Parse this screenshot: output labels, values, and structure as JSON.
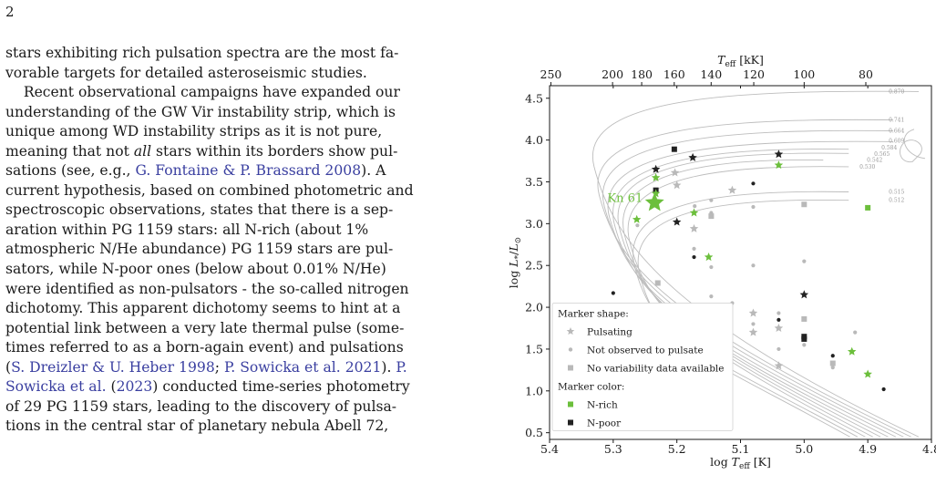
{
  "page_number": "2",
  "lines": [
    [
      {
        "t": "stars exhibiting rich pulsation spectra are the most fa-"
      }
    ],
    [
      {
        "t": "vorable targets for detailed asteroseismic studies."
      }
    ],
    [
      {
        "t": "    Recent observational campaigns have expanded our"
      }
    ],
    [
      {
        "t": "understanding of the GW Vir instability strip, which is"
      }
    ],
    [
      {
        "t": "unique among WD instability strips as it is not pure,"
      }
    ],
    [
      {
        "t": "meaning that not "
      },
      {
        "t": "all",
        "s": "em"
      },
      {
        "t": " stars within its borders show pul-"
      }
    ],
    [
      {
        "t": "sations (see, e.g., "
      },
      {
        "t": "G. Fontaine & P. Brassard 2008",
        "s": "cite"
      },
      {
        "t": "). A"
      }
    ],
    [
      {
        "t": "current hypothesis, based on combined photometric and"
      }
    ],
    [
      {
        "t": "spectroscopic observations, states that there is a sep-"
      }
    ],
    [
      {
        "t": "aration within PG 1159 stars: all N-rich (about 1%"
      }
    ],
    [
      {
        "t": "atmospheric N/He abundance) PG 1159 stars are pul-"
      }
    ],
    [
      {
        "t": "sators, while N-poor ones (below about 0.01% N/He)"
      }
    ],
    [
      {
        "t": "were identified as non-pulsators - the so-called nitrogen"
      }
    ],
    [
      {
        "t": "dichotomy. This apparent dichotomy seems to hint at a"
      }
    ],
    [
      {
        "t": "potential link between a very late thermal pulse (some-"
      }
    ],
    [
      {
        "t": "times referred to as a born-again event) and pulsations"
      }
    ],
    [
      {
        "t": "("
      },
      {
        "t": "S. Dreizler & U. Heber 1998",
        "s": "cite"
      },
      {
        "t": "; "
      },
      {
        "t": "P. Sowicka et al. 2021",
        "s": "cite"
      },
      {
        "t": "). "
      },
      {
        "t": "P.",
        "s": "cite"
      }
    ],
    [
      {
        "t": "Sowicka et al.",
        "s": "cite"
      },
      {
        "t": " ("
      },
      {
        "t": "2023",
        "s": "cite"
      },
      {
        "t": ") conducted time-series photometry"
      }
    ],
    [
      {
        "t": "of 29 PG 1159 stars, leading to the discovery of pulsa-"
      }
    ],
    [
      {
        "t": "tions in the central star of planetary nebula Abell 72,"
      }
    ]
  ],
  "chart_data": {
    "type": "scatter",
    "xlabel": "log T_eff [K]",
    "ylabel": "log L*/L⊙",
    "top_xlabel": "T_eff [kK]",
    "xlim": [
      5.4,
      4.8
    ],
    "x_reversed": true,
    "ylim": [
      0.42,
      4.65
    ],
    "xticks": [
      "5.4",
      "5.3",
      "5.2",
      "5.1",
      "5.0",
      "4.9",
      "4.8"
    ],
    "yticks": [
      "0.5",
      "1.0",
      "1.5",
      "2.0",
      "2.5",
      "3.0",
      "3.5",
      "4.0",
      "4.5"
    ],
    "top_ticks_kK": [
      250,
      200,
      180,
      160,
      140,
      120,
      100,
      80
    ],
    "track_labels": [
      "0.870",
      "0.741",
      "0.664",
      "0.609",
      "0.584",
      "0.565",
      "0.542",
      "0.530",
      "0.515",
      "0.512"
    ],
    "colors": {
      "n_rich": "#6cbf3c",
      "n_poor": "#222222",
      "unknown": "#b9b9b9",
      "track": "#bdbdbd"
    },
    "annotation": {
      "label": "Kn 61",
      "x": 5.235,
      "y": 3.25
    },
    "legend": {
      "placement": "lower-left",
      "shape_title": "Marker shape:",
      "shape_items": [
        {
          "label": "Pulsating",
          "marker": "star"
        },
        {
          "label": "Not observed to pulsate",
          "marker": "dot"
        },
        {
          "label": "No variability data available",
          "marker": "square"
        }
      ],
      "color_title": "Marker color:",
      "color_items": [
        {
          "label": "N-rich",
          "color": "#6cbf3c"
        },
        {
          "label": "N-poor",
          "color": "#222222"
        }
      ]
    },
    "points": [
      {
        "x": 5.204,
        "y": 3.89,
        "m": "sq",
        "c": "k"
      },
      {
        "x": 5.175,
        "y": 3.79,
        "m": "st",
        "c": "k"
      },
      {
        "x": 5.04,
        "y": 3.83,
        "m": "st",
        "c": "k"
      },
      {
        "x": 5.04,
        "y": 3.7,
        "m": "st",
        "c": "g"
      },
      {
        "x": 5.233,
        "y": 3.65,
        "m": "st",
        "c": "k"
      },
      {
        "x": 5.233,
        "y": 3.55,
        "m": "st",
        "c": "g"
      },
      {
        "x": 5.203,
        "y": 3.61,
        "m": "st",
        "c": "u"
      },
      {
        "x": 5.2,
        "y": 3.46,
        "m": "st",
        "c": "u"
      },
      {
        "x": 5.233,
        "y": 3.4,
        "m": "sq",
        "c": "k"
      },
      {
        "x": 5.233,
        "y": 3.36,
        "m": "st",
        "c": "g"
      },
      {
        "x": 5.113,
        "y": 3.4,
        "m": "st",
        "c": "u"
      },
      {
        "x": 5.08,
        "y": 3.48,
        "m": "dot",
        "c": "k"
      },
      {
        "x": 5.146,
        "y": 3.28,
        "m": "dot",
        "c": "u"
      },
      {
        "x": 5.08,
        "y": 3.2,
        "m": "dot",
        "c": "u"
      },
      {
        "x": 5.172,
        "y": 3.21,
        "m": "dot",
        "c": "u"
      },
      {
        "x": 5.173,
        "y": 3.13,
        "m": "st",
        "c": "g"
      },
      {
        "x": 5.146,
        "y": 3.13,
        "m": "dot",
        "c": "u"
      },
      {
        "x": 5.146,
        "y": 3.09,
        "m": "sq",
        "c": "u"
      },
      {
        "x": 5.0,
        "y": 3.23,
        "m": "sq",
        "c": "u"
      },
      {
        "x": 4.9,
        "y": 3.19,
        "m": "sq",
        "c": "g"
      },
      {
        "x": 5.263,
        "y": 3.05,
        "m": "st",
        "c": "g"
      },
      {
        "x": 5.262,
        "y": 2.98,
        "m": "dot",
        "c": "u"
      },
      {
        "x": 5.2,
        "y": 3.02,
        "m": "st",
        "c": "k"
      },
      {
        "x": 5.173,
        "y": 2.94,
        "m": "st",
        "c": "u"
      },
      {
        "x": 5.173,
        "y": 2.7,
        "m": "dot",
        "c": "u"
      },
      {
        "x": 5.173,
        "y": 2.6,
        "m": "dot",
        "c": "k"
      },
      {
        "x": 5.15,
        "y": 2.6,
        "m": "st",
        "c": "g"
      },
      {
        "x": 5.146,
        "y": 2.48,
        "m": "dot",
        "c": "u"
      },
      {
        "x": 5.08,
        "y": 2.5,
        "m": "dot",
        "c": "u"
      },
      {
        "x": 5.0,
        "y": 2.55,
        "m": "dot",
        "c": "u"
      },
      {
        "x": 5.23,
        "y": 2.29,
        "m": "sq",
        "c": "u"
      },
      {
        "x": 5.3,
        "y": 2.17,
        "m": "dot",
        "c": "k"
      },
      {
        "x": 5.146,
        "y": 2.13,
        "m": "dot",
        "c": "u"
      },
      {
        "x": 5.113,
        "y": 2.05,
        "m": "dot",
        "c": "u"
      },
      {
        "x": 5.0,
        "y": 2.15,
        "m": "st",
        "c": "k"
      },
      {
        "x": 5.08,
        "y": 1.93,
        "m": "st",
        "c": "u"
      },
      {
        "x": 5.04,
        "y": 1.93,
        "m": "dot",
        "c": "u"
      },
      {
        "x": 5.08,
        "y": 1.8,
        "m": "dot",
        "c": "u"
      },
      {
        "x": 5.04,
        "y": 1.85,
        "m": "dot",
        "c": "k"
      },
      {
        "x": 5.0,
        "y": 1.86,
        "m": "sq",
        "c": "u"
      },
      {
        "x": 5.04,
        "y": 1.75,
        "m": "st",
        "c": "u"
      },
      {
        "x": 5.08,
        "y": 1.7,
        "m": "st",
        "c": "u"
      },
      {
        "x": 5.0,
        "y": 1.65,
        "m": "sq",
        "c": "k"
      },
      {
        "x": 5.0,
        "y": 1.62,
        "m": "sq",
        "c": "k"
      },
      {
        "x": 5.0,
        "y": 1.55,
        "m": "dot",
        "c": "u"
      },
      {
        "x": 5.04,
        "y": 1.5,
        "m": "dot",
        "c": "u"
      },
      {
        "x": 4.92,
        "y": 1.7,
        "m": "dot",
        "c": "u"
      },
      {
        "x": 4.925,
        "y": 1.47,
        "m": "st",
        "c": "g"
      },
      {
        "x": 4.955,
        "y": 1.42,
        "m": "dot",
        "c": "k"
      },
      {
        "x": 4.955,
        "y": 1.33,
        "m": "sq",
        "c": "u"
      },
      {
        "x": 4.955,
        "y": 1.28,
        "m": "dot",
        "c": "u"
      },
      {
        "x": 5.04,
        "y": 1.3,
        "m": "st",
        "c": "u"
      },
      {
        "x": 4.9,
        "y": 1.2,
        "m": "st",
        "c": "g"
      },
      {
        "x": 4.875,
        "y": 1.02,
        "m": "dot",
        "c": "k"
      }
    ]
  }
}
